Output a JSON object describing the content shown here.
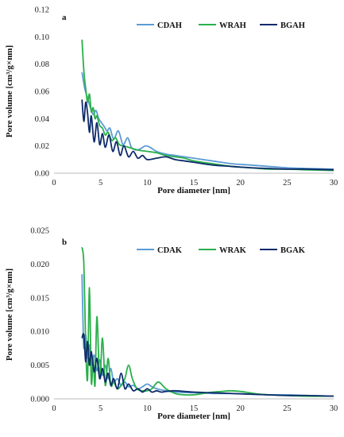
{
  "chart_data": [
    {
      "type": "line",
      "panel_label": "a",
      "xlabel": "Pore diameter [nm]",
      "ylabel": "Pore volume [cm³/g×nm]",
      "xlim": [
        0,
        30
      ],
      "ylim": [
        0,
        0.12
      ],
      "xticks": [
        "0",
        "5",
        "10",
        "15",
        "20",
        "25",
        "30"
      ],
      "yticks": [
        "0.00",
        "0.02",
        "0.04",
        "0.06",
        "0.08",
        "0.10",
        "0.12"
      ],
      "legend_position": "top-right",
      "grid": false,
      "series": [
        {
          "name": "CDAH",
          "color": "#5b9bd5",
          "x": [
            3.0,
            3.3,
            3.6,
            3.9,
            4.2,
            4.5,
            4.8,
            5.1,
            5.4,
            5.7,
            6.0,
            6.4,
            6.9,
            7.4,
            7.9,
            8.3,
            8.8,
            9.3,
            9.8,
            10.3,
            11,
            12,
            13,
            14,
            15,
            17,
            19,
            21,
            23,
            25,
            27,
            30
          ],
          "y": [
            0.074,
            0.062,
            0.055,
            0.048,
            0.043,
            0.046,
            0.04,
            0.037,
            0.034,
            0.031,
            0.033,
            0.025,
            0.031,
            0.021,
            0.026,
            0.019,
            0.017,
            0.018,
            0.02,
            0.019,
            0.016,
            0.014,
            0.013,
            0.012,
            0.011,
            0.009,
            0.007,
            0.006,
            0.005,
            0.004,
            0.0035,
            0.003
          ]
        },
        {
          "name": "WRAH",
          "color": "#2ab04a",
          "x": [
            3.0,
            3.2,
            3.4,
            3.6,
            3.8,
            4.0,
            4.2,
            4.4,
            4.6,
            4.9,
            5.2,
            5.5,
            5.8,
            6.2,
            6.6,
            7.0,
            7.5,
            8.0,
            9,
            10,
            11,
            12,
            13,
            14,
            15,
            17,
            19,
            21,
            23,
            25,
            27,
            30
          ],
          "y": [
            0.098,
            0.075,
            0.062,
            0.052,
            0.058,
            0.045,
            0.048,
            0.04,
            0.042,
            0.035,
            0.033,
            0.028,
            0.03,
            0.024,
            0.026,
            0.021,
            0.02,
            0.019,
            0.017,
            0.016,
            0.015,
            0.013,
            0.012,
            0.011,
            0.009,
            0.007,
            0.005,
            0.004,
            0.003,
            0.003,
            0.0025,
            0.002
          ]
        },
        {
          "name": "BGAH",
          "color": "#0d2b6b",
          "x": [
            3.0,
            3.2,
            3.4,
            3.6,
            3.8,
            4.0,
            4.3,
            4.6,
            4.9,
            5.2,
            5.5,
            5.9,
            6.3,
            6.7,
            7.1,
            7.5,
            8.0,
            8.5,
            9.0,
            9.5,
            10,
            11,
            12,
            13,
            14,
            15,
            17,
            19,
            21,
            23,
            25,
            27,
            30
          ],
          "y": [
            0.054,
            0.038,
            0.052,
            0.044,
            0.03,
            0.042,
            0.023,
            0.037,
            0.021,
            0.029,
            0.019,
            0.028,
            0.016,
            0.023,
            0.013,
            0.02,
            0.012,
            0.016,
            0.011,
            0.013,
            0.01,
            0.011,
            0.012,
            0.01,
            0.009,
            0.008,
            0.006,
            0.005,
            0.004,
            0.0035,
            0.003,
            0.003,
            0.0025
          ]
        }
      ]
    },
    {
      "type": "line",
      "panel_label": "b",
      "xlabel": "Pore diameter [nm]",
      "ylabel": "Pore volume [cm³/g×nm]",
      "xlim": [
        0,
        30
      ],
      "ylim": [
        0,
        0.025
      ],
      "xticks": [
        "0",
        "5",
        "10",
        "15",
        "20",
        "25",
        "30"
      ],
      "yticks": [
        "0.000",
        "0.005",
        "0.010",
        "0.015",
        "0.020",
        "0.025"
      ],
      "legend_position": "top-right",
      "grid": false,
      "series": [
        {
          "name": "CDAK",
          "color": "#5b9bd5",
          "x": [
            3.0,
            3.1,
            3.2,
            3.4,
            3.6,
            3.8,
            4.0,
            4.3,
            4.6,
            4.9,
            5.2,
            5.5,
            5.8,
            6.1,
            6.4,
            6.8,
            7.2,
            7.6,
            8.0,
            8.5,
            9.0,
            9.5,
            10.0,
            10.5,
            11,
            12,
            13,
            15,
            17,
            19,
            21,
            23,
            25,
            27,
            30
          ],
          "y": [
            0.0185,
            0.012,
            0.0075,
            0.0095,
            0.006,
            0.008,
            0.005,
            0.0065,
            0.0042,
            0.0058,
            0.0035,
            0.005,
            0.003,
            0.0045,
            0.0025,
            0.003,
            0.002,
            0.0025,
            0.0018,
            0.002,
            0.0015,
            0.0018,
            0.0022,
            0.0018,
            0.0015,
            0.0012,
            0.001,
            0.0009,
            0.0008,
            0.0008,
            0.0007,
            0.0006,
            0.0006,
            0.0005,
            0.0004
          ]
        },
        {
          "name": "WRAK",
          "color": "#2ab04a",
          "x": [
            3.0,
            3.2,
            3.4,
            3.6,
            3.8,
            4.0,
            4.2,
            4.4,
            4.6,
            4.9,
            5.2,
            5.5,
            5.8,
            6.1,
            6.4,
            6.8,
            7.2,
            7.6,
            8.0,
            8.4,
            8.9,
            9.4,
            10,
            10.5,
            11.2,
            12,
            13,
            14,
            15,
            16,
            17,
            18,
            19,
            20,
            21,
            22,
            23,
            25,
            27,
            30
          ],
          "y": [
            0.0225,
            0.02,
            0.008,
            0.003,
            0.0165,
            0.0025,
            0.006,
            0.002,
            0.0122,
            0.003,
            0.009,
            0.002,
            0.006,
            0.002,
            0.0025,
            0.0015,
            0.002,
            0.003,
            0.005,
            0.003,
            0.0015,
            0.0012,
            0.0012,
            0.0015,
            0.0025,
            0.0015,
            0.0008,
            0.0006,
            0.0006,
            0.0008,
            0.001,
            0.0011,
            0.0012,
            0.0011,
            0.0009,
            0.0007,
            0.0006,
            0.0005,
            0.0004,
            0.0004
          ]
        },
        {
          "name": "BGAK",
          "color": "#0d2b6b",
          "x": [
            3.0,
            3.2,
            3.4,
            3.6,
            3.8,
            4.0,
            4.3,
            4.6,
            4.9,
            5.2,
            5.5,
            5.8,
            6.1,
            6.4,
            6.8,
            7.2,
            7.6,
            8.0,
            8.5,
            9.0,
            9.5,
            10,
            10.5,
            11,
            11.5,
            12,
            13,
            14,
            15,
            17,
            19,
            21,
            23,
            25,
            27,
            30
          ],
          "y": [
            0.009,
            0.0095,
            0.0055,
            0.0085,
            0.005,
            0.007,
            0.004,
            0.006,
            0.003,
            0.0045,
            0.0025,
            0.0038,
            0.002,
            0.003,
            0.0015,
            0.0038,
            0.0015,
            0.0022,
            0.0012,
            0.0015,
            0.001,
            0.0015,
            0.001,
            0.0012,
            0.001,
            0.0011,
            0.0012,
            0.0011,
            0.001,
            0.0009,
            0.0008,
            0.0007,
            0.0006,
            0.0005,
            0.0005,
            0.0004
          ]
        }
      ]
    }
  ]
}
